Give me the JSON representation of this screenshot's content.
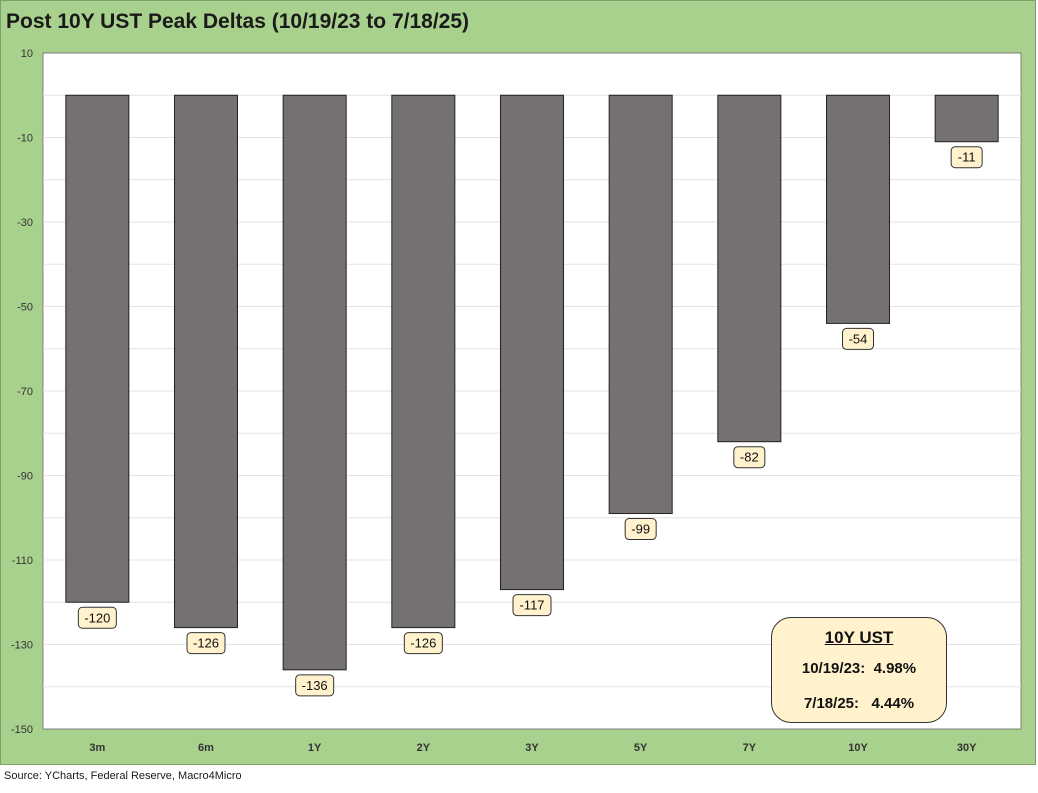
{
  "chart_data": {
    "type": "bar",
    "title": "Post 10Y UST Peak Deltas (10/19/23 to 7/18/25)",
    "categories": [
      "3m",
      "6m",
      "1Y",
      "2Y",
      "3Y",
      "5Y",
      "7Y",
      "10Y",
      "30Y"
    ],
    "values": [
      -120,
      -126,
      -136,
      -126,
      -117,
      -99,
      -82,
      -54,
      -11
    ],
    "data_labels": [
      "-120",
      "-126",
      "-136",
      "-126",
      "-117",
      "-99",
      "-82",
      "-54",
      "-11"
    ],
    "ylim": [
      -150,
      10
    ],
    "yticks": [
      10,
      -10,
      -30,
      -50,
      -70,
      -90,
      -110,
      -130,
      -150
    ],
    "ytick_labels": [
      "10",
      "-10",
      "-30",
      "-50",
      "-70",
      "-90",
      "-110",
      "-130",
      "-150"
    ],
    "grid": true,
    "legend": "none",
    "colors": {
      "bar": "#767171",
      "frame_background": "#a9d18e",
      "plot_background": "#ffffff",
      "label_background": "#fff2cc"
    },
    "annotation": {
      "title": "10Y UST",
      "rows": [
        "10/19/23:  4.98%",
        "7/18/25:   4.44%"
      ]
    }
  },
  "source": "Source: YCharts, Federal Reserve, Macro4Micro"
}
